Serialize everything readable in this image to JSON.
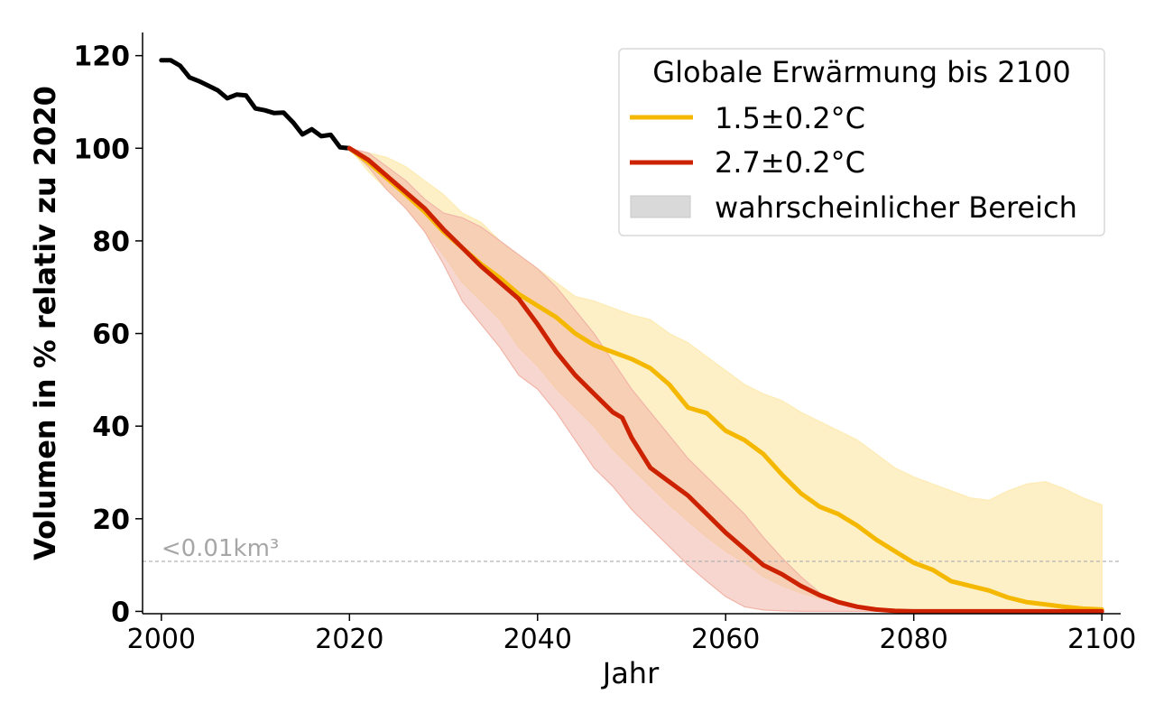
{
  "chart_data": {
    "type": "line",
    "xlabel": "Jahr",
    "ylabel": "Volumen in % relativ zu 2020",
    "xlim": [
      1998,
      2102
    ],
    "ylim": [
      -0.5,
      125
    ],
    "xticks": [
      "2000",
      "2020",
      "2040",
      "2060",
      "2080",
      "2100"
    ],
    "yticks": [
      "0",
      "20",
      "40",
      "60",
      "80",
      "100",
      "120"
    ],
    "grid": false,
    "legend": {
      "title": "Globale Erwärmung bis 2100",
      "placement": "top-right",
      "entries": [
        "1.5±0.2°C",
        "2.7±0.2°C",
        "wahrscheinlicher Bereich"
      ]
    },
    "threshold": {
      "y": 10.8,
      "label": "<0.01km³",
      "color": "#b3b3b3"
    },
    "colors": {
      "historical": "#000000",
      "low": "#f5b800",
      "high": "#cc2200",
      "low_band": "#fdebb3",
      "high_band": "#f1b4a7",
      "legend_band": "#d9d9d9"
    },
    "series": [
      {
        "x": [
          2000,
          2001,
          2002,
          2003,
          2004,
          2005,
          2006,
          2007,
          2008,
          2009,
          2010,
          2011,
          2012,
          2013,
          2014,
          2015,
          2016,
          2017,
          2018,
          2019,
          2020
        ],
        "values": [
          119,
          119,
          117.8,
          115.3,
          114.5,
          113.5,
          112.5,
          110.8,
          111.6,
          111.4,
          108.6,
          108.2,
          107.6,
          107.7,
          105.6,
          103,
          104.1,
          102.6,
          102.9,
          100.2,
          100
        ]
      },
      {
        "name": "1.5±0.2°C",
        "x": [
          2020,
          2022,
          2024,
          2026,
          2028,
          2030,
          2032,
          2034,
          2036,
          2038,
          2040,
          2042,
          2044,
          2046,
          2048,
          2050,
          2052,
          2054,
          2056,
          2058,
          2060,
          2062,
          2064,
          2066,
          2068,
          2070,
          2072,
          2074,
          2076,
          2078,
          2080,
          2082,
          2084,
          2086,
          2088,
          2090,
          2092,
          2094,
          2096,
          2098,
          2100
        ],
        "values": [
          100,
          97,
          93.5,
          90,
          86.3,
          82,
          78.5,
          75,
          72,
          68.5,
          66,
          63.5,
          60,
          57.5,
          56,
          54.5,
          52.5,
          49,
          44,
          42.8,
          39,
          37,
          34,
          29.5,
          25.5,
          22.6,
          21,
          18.5,
          15.5,
          13,
          10.5,
          9,
          6.5,
          5.5,
          4.5,
          3,
          2,
          1.5,
          1,
          0.6,
          0.4
        ]
      },
      {
        "name": "2.7±0.2°C",
        "x": [
          2020,
          2022,
          2024,
          2026,
          2028,
          2030,
          2032,
          2034,
          2036,
          2038,
          2040,
          2042,
          2044,
          2046,
          2048,
          2049,
          2050,
          2052,
          2054,
          2056,
          2058,
          2060,
          2062,
          2064,
          2066,
          2068,
          2070,
          2072,
          2074,
          2076,
          2078,
          2080,
          2100
        ],
        "values": [
          100,
          97.5,
          94,
          90.5,
          87,
          82.5,
          78.5,
          74.5,
          71,
          67.5,
          62,
          56,
          51,
          47,
          43,
          41.8,
          37.5,
          31,
          28,
          25,
          21,
          17,
          13.5,
          10,
          8,
          5.5,
          3.5,
          2,
          1,
          0.4,
          0.1,
          0,
          0
        ]
      }
    ],
    "bands": [
      {
        "x": [
          2020,
          2022,
          2024,
          2026,
          2028,
          2030,
          2032,
          2034,
          2036,
          2038,
          2040,
          2042,
          2044,
          2046,
          2048,
          2050,
          2052,
          2054,
          2056,
          2058,
          2060,
          2062,
          2064,
          2066,
          2068,
          2070,
          2072,
          2074,
          2076,
          2078,
          2080,
          2082,
          2084,
          2086,
          2088,
          2090,
          2092,
          2094,
          2096,
          2098,
          2100
        ],
        "upper": [
          100,
          99,
          98,
          96,
          93,
          90,
          86,
          84,
          80,
          77,
          74,
          71,
          68,
          67,
          65.5,
          64,
          63,
          60,
          58,
          55,
          52,
          49,
          47,
          45.5,
          43,
          41,
          39,
          37,
          34,
          31,
          29,
          27.5,
          26,
          24.5,
          24,
          26,
          27.5,
          28,
          26.5,
          24.5,
          23
        ],
        "lower": [
          100,
          95,
          91,
          87,
          82,
          77,
          71,
          67,
          63,
          57,
          53,
          48,
          44,
          40,
          35,
          31,
          27,
          23,
          19.5,
          16,
          13,
          10.5,
          7.5,
          5.5,
          4,
          2.8,
          2,
          1.3,
          0.8,
          0.4,
          0.2,
          0.1,
          0,
          0,
          0,
          0,
          0,
          0,
          0,
          0,
          0
        ]
      },
      {
        "x": [
          2020,
          2022,
          2024,
          2026,
          2028,
          2030,
          2032,
          2034,
          2036,
          2038,
          2040,
          2042,
          2044,
          2046,
          2048,
          2050,
          2052,
          2054,
          2056,
          2058,
          2060,
          2062,
          2064,
          2066,
          2068,
          2070,
          2072,
          2074,
          2076,
          2078,
          2080,
          2100
        ],
        "upper": [
          100,
          99,
          96,
          93,
          89,
          86,
          85,
          83,
          80,
          77,
          74,
          70,
          65,
          60,
          54,
          48,
          43,
          38,
          33,
          29,
          25,
          21,
          16,
          11.5,
          7.5,
          4,
          2,
          0.8,
          0.3,
          0.1,
          0,
          0
        ],
        "lower": [
          100,
          96,
          91,
          87,
          82,
          75,
          67,
          62,
          57,
          51,
          48,
          43,
          37,
          31,
          27,
          22,
          18,
          14,
          10,
          6.5,
          3.2,
          1,
          0.3,
          0.1,
          0,
          0,
          0,
          0,
          0,
          0,
          0,
          0
        ]
      }
    ]
  }
}
